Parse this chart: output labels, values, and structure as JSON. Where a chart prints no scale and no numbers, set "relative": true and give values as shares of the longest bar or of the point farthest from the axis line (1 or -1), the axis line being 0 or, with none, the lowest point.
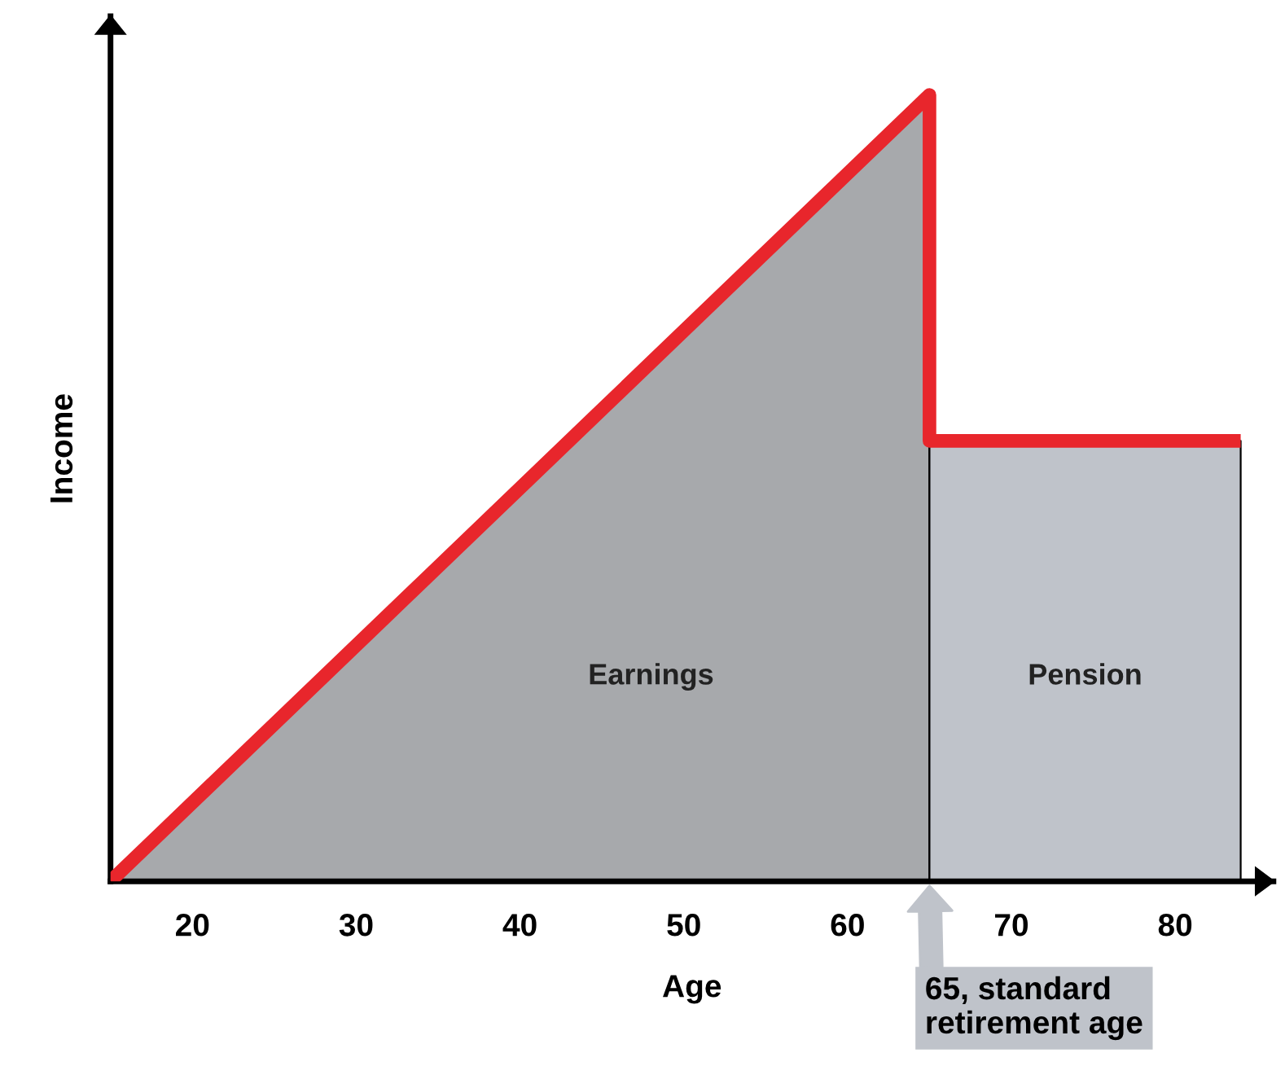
{
  "chart_data": {
    "type": "area",
    "relative": true,
    "xlabel": "Age",
    "ylabel": "Income",
    "xlim": [
      15,
      86
    ],
    "xticks": [
      20,
      30,
      40,
      50,
      60,
      70,
      80
    ],
    "series": [
      {
        "name": "Earnings",
        "color": "#a7a9ac",
        "x": [
          15,
          65
        ],
        "values": [
          0,
          1
        ]
      },
      {
        "name": "Pension",
        "color": "#bfc3ca",
        "x": [
          65,
          84
        ],
        "values": [
          0.56,
          0.56
        ]
      },
      {
        "type": "line",
        "color": "#e8262c",
        "x": [
          15,
          65,
          65,
          84
        ],
        "values": [
          0,
          1,
          0.56,
          0.56
        ]
      }
    ],
    "annotations": [
      {
        "text": "65, standard\nretirement age",
        "x": 65,
        "y": 0
      }
    ],
    "grid": false,
    "legend": false
  }
}
